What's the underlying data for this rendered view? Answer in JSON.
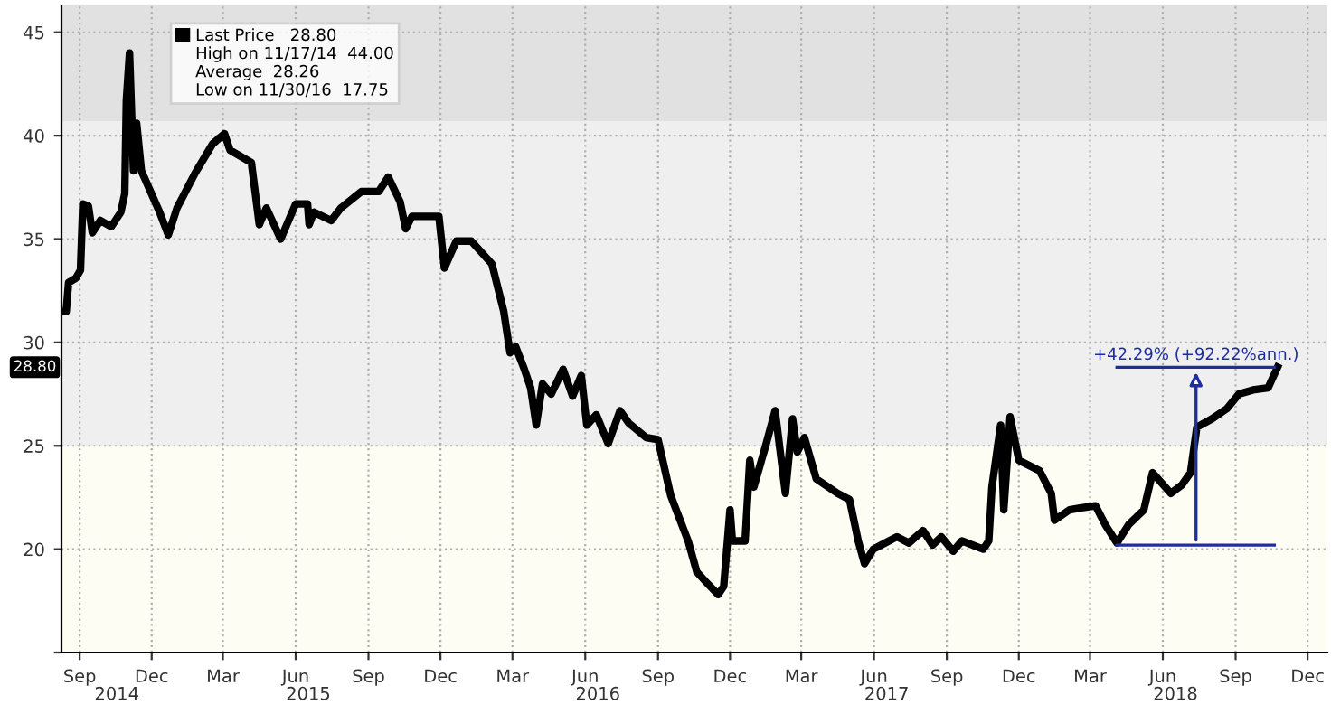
{
  "chart_data": {
    "type": "line",
    "annotations": [
      "28.80",
      "High on 11/17/14  44.00",
      "Average  28.26",
      "Low on 11/30/16  17.75",
      {
        "text": "+42.29% (+92.22%ann.)",
        "x": "2018-07-27",
        "y": 28.8
      }
    ],
    "series": [
      {
        "name": "Last Price   28.80",
        "color": "#000000",
        "x": [
          "2014-08-25",
          "2014-08-29",
          "2014-09-01",
          "2014-09-10",
          "2014-09-16",
          "2014-09-19",
          "2014-09-26",
          "2014-10-01",
          "2014-10-11",
          "2014-10-25",
          "2014-11-06",
          "2014-11-11",
          "2014-11-13",
          "2014-11-17",
          "2014-11-22",
          "2014-11-26",
          "2014-12-02",
          "2014-12-25",
          "2015-01-05",
          "2015-01-16",
          "2015-02-08",
          "2015-03-02",
          "2015-03-17",
          "2015-03-24",
          "2015-04-20",
          "2015-04-30",
          "2015-05-09",
          "2015-05-27",
          "2015-06-15",
          "2015-06-30",
          "2015-07-02",
          "2015-07-08",
          "2015-07-30",
          "2015-08-11",
          "2015-09-06",
          "2015-09-28",
          "2015-10-10",
          "2015-10-25",
          "2015-11-01",
          "2015-11-09",
          "2015-12-13",
          "2015-12-20",
          "2016-01-04",
          "2016-01-23",
          "2016-02-18",
          "2016-03-04",
          "2016-03-12",
          "2016-03-19",
          "2016-03-30",
          "2016-04-07",
          "2016-04-14",
          "2016-04-22",
          "2016-05-03",
          "2016-05-18",
          "2016-05-30",
          "2016-06-10",
          "2016-06-17",
          "2016-06-29",
          "2016-07-14",
          "2016-07-29",
          "2016-08-09",
          "2016-08-31",
          "2016-09-15",
          "2016-10-01",
          "2016-10-23",
          "2016-11-03",
          "2016-11-15",
          "2016-11-30",
          "2016-12-07",
          "2016-12-15",
          "2016-12-18",
          "2017-01-03",
          "2017-01-09",
          "2017-01-14",
          "2017-01-29",
          "2017-02-10",
          "2017-02-23",
          "2017-03-04",
          "2017-03-10",
          "2017-03-19",
          "2017-04-03",
          "2017-04-30",
          "2017-05-15",
          "2017-05-26",
          "2017-06-03",
          "2017-06-14",
          "2017-06-29",
          "2017-07-14",
          "2017-07-29",
          "2017-08-16",
          "2017-08-28",
          "2017-09-08",
          "2017-09-23",
          "2017-10-04",
          "2017-10-31",
          "2017-11-07",
          "2017-11-11",
          "2017-11-22",
          "2017-11-26",
          "2017-12-04",
          "2017-12-15",
          "2018-01-10",
          "2018-01-25",
          "2018-01-29",
          "2018-02-17",
          "2018-03-04",
          "2018-03-22",
          "2018-04-03",
          "2018-04-18",
          "2018-05-03",
          "2018-05-22",
          "2018-06-02",
          "2018-06-25",
          "2018-07-09",
          "2018-07-20",
          "2018-07-28",
          "2018-08-16",
          "2018-09-04",
          "2018-09-19",
          "2018-10-07",
          "2018-10-26",
          "2018-11-07"
        ],
        "values": [
          31.5,
          31.5,
          32.9,
          33.1,
          33.5,
          36.7,
          36.6,
          35.3,
          35.9,
          35.6,
          36.3,
          37.2,
          41.7,
          44.0,
          38.3,
          40.6,
          38.3,
          36.3,
          35.2,
          36.5,
          38.2,
          39.6,
          40.1,
          39.3,
          38.7,
          35.7,
          36.5,
          35.0,
          36.7,
          36.7,
          35.7,
          36.3,
          35.9,
          36.5,
          37.3,
          37.3,
          38.0,
          36.8,
          35.5,
          36.1,
          36.1,
          33.6,
          34.9,
          34.9,
          33.8,
          31.5,
          29.5,
          29.8,
          28.7,
          27.8,
          26.0,
          28.0,
          27.5,
          28.7,
          27.4,
          28.4,
          26.0,
          26.5,
          25.1,
          26.7,
          26.1,
          25.4,
          25.3,
          22.6,
          20.4,
          18.9,
          18.4,
          17.8,
          18.2,
          21.9,
          20.4,
          20.4,
          24.3,
          23.0,
          25.0,
          26.7,
          22.7,
          26.3,
          24.7,
          25.4,
          23.4,
          22.7,
          22.4,
          20.4,
          19.3,
          20.0,
          20.3,
          20.6,
          20.3,
          20.9,
          20.2,
          20.6,
          19.9,
          20.4,
          20.0,
          20.4,
          23.0,
          26.0,
          21.9,
          26.4,
          24.3,
          23.8,
          22.7,
          21.4,
          21.9,
          22.0,
          22.1,
          21.2,
          20.3,
          21.2,
          21.9,
          23.7,
          22.7,
          23.1,
          23.7,
          25.9,
          26.3,
          26.8,
          27.5,
          27.7,
          27.8,
          28.8
        ]
      },
      {
        "color": "#1f2d9e",
        "x": [
          "2018-04-18",
          "2018-11-03"
        ],
        "values": [
          20.2,
          20.2
        ]
      },
      {
        "color": "#1f2d9e",
        "x": [
          "2018-04-18",
          "2018-11-03"
        ],
        "values": [
          28.8,
          28.8
        ]
      }
    ],
    "xlim": [
      "2014-08-23",
      "2019-01-09"
    ],
    "xticks": [
      {
        "value": "2014-09-15",
        "label": "Sep"
      },
      {
        "value": "2014-12-15",
        "label": "Dec"
      },
      {
        "value": "2015-03-15",
        "label": "Mar"
      },
      {
        "value": "2015-06-15",
        "label": "Jun"
      },
      {
        "value": "2015-09-15",
        "label": "Sep"
      },
      {
        "value": "2015-12-15",
        "label": "Dec"
      },
      {
        "value": "2016-03-15",
        "label": "Mar"
      },
      {
        "value": "2016-06-15",
        "label": "Jun"
      },
      {
        "value": "2016-09-15",
        "label": "Sep"
      },
      {
        "value": "2016-12-15",
        "label": "Dec"
      },
      {
        "value": "2017-03-15",
        "label": "Mar"
      },
      {
        "value": "2017-06-15",
        "label": "Jun"
      },
      {
        "value": "2017-09-15",
        "label": "Sep"
      },
      {
        "value": "2017-12-15",
        "label": "Dec"
      },
      {
        "value": "2018-03-15",
        "label": "Mar"
      },
      {
        "value": "2018-06-15",
        "label": "Jun"
      },
      {
        "value": "2018-09-15",
        "label": "Sep"
      },
      {
        "value": "2018-12-15",
        "label": "Dec"
      }
    ],
    "x2lim": [
      "2014-08-23",
      "2019-01-09"
    ],
    "x2ticks": [
      {
        "value": "2014-11-01",
        "label": "2014"
      },
      {
        "value": "2015-07-01",
        "label": "2015"
      },
      {
        "value": "2016-07-01",
        "label": "2016"
      },
      {
        "value": "2017-07-01",
        "label": "2017"
      },
      {
        "value": "2018-07-01",
        "label": "2018"
      }
    ],
    "ylim": [
      15,
      46.3
    ],
    "yticks": [
      {
        "value": 15,
        "label": null
      },
      20,
      25,
      30,
      35,
      40,
      45
    ],
    "bands": [
      {
        "axis": "y",
        "from": 40.7,
        "to": 46.3,
        "color": "#e1e1e1"
      },
      {
        "axis": "y",
        "from": 25,
        "to": 40.7,
        "color": "#efefef"
      },
      {
        "axis": "y",
        "from": 15,
        "to": 25,
        "color": "#fdfdf4"
      }
    ],
    "grid": true,
    "legend": "top left",
    "line_style": "solid"
  }
}
